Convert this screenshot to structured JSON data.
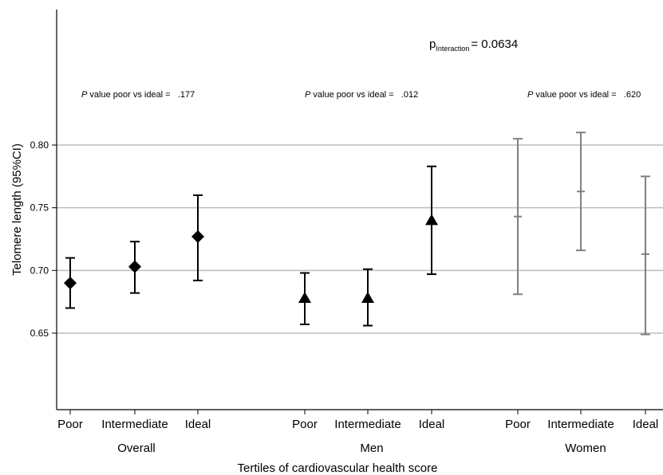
{
  "chart_data": {
    "type": "errorbar",
    "title": "",
    "xlabel": "Tertiles of cardiovascular health score",
    "ylabel": "Telomere length (95%CI)",
    "ylim": [
      0.6,
      0.88
    ],
    "yticks": [
      "0.65",
      "0.70",
      "0.75",
      "0.80"
    ],
    "ytick_values": [
      0.65,
      0.7,
      0.75,
      0.8
    ],
    "grid": "horizontal",
    "interaction": {
      "prefix": "p",
      "sub": "Interaction",
      "suffix": "= 0.0634"
    },
    "groups": [
      {
        "name": "Overall",
        "marker": "diamond",
        "color": "#000000",
        "pnote": {
          "italic": "P",
          "text": "value poor vs  ideal =",
          "value": ".177"
        },
        "points": [
          {
            "category": "Poor",
            "y": 0.69,
            "lo": 0.67,
            "hi": 0.71
          },
          {
            "category": "Intermediate",
            "y": 0.703,
            "lo": 0.682,
            "hi": 0.723
          },
          {
            "category": "Ideal",
            "y": 0.727,
            "lo": 0.692,
            "hi": 0.76
          }
        ]
      },
      {
        "name": "Men",
        "marker": "triangle",
        "color": "#000000",
        "pnote": {
          "italic": "P",
          "text": "value poor vs  ideal =",
          "value": ".012"
        },
        "points": [
          {
            "category": "Poor",
            "y": 0.678,
            "lo": 0.657,
            "hi": 0.698
          },
          {
            "category": "Intermediate",
            "y": 0.678,
            "lo": 0.656,
            "hi": 0.701
          },
          {
            "category": "Ideal",
            "y": 0.74,
            "lo": 0.697,
            "hi": 0.783
          }
        ]
      },
      {
        "name": "Women",
        "marker": "dash",
        "color": "#808080",
        "pnote": {
          "italic": "P",
          "text": "value poor vs  ideal =",
          "value": ".620"
        },
        "points": [
          {
            "category": "Poor",
            "y": 0.743,
            "lo": 0.681,
            "hi": 0.805
          },
          {
            "category": "Intermediate",
            "y": 0.763,
            "lo": 0.716,
            "hi": 0.81
          },
          {
            "category": "Ideal",
            "y": 0.713,
            "lo": 0.649,
            "hi": 0.775
          }
        ]
      }
    ]
  }
}
